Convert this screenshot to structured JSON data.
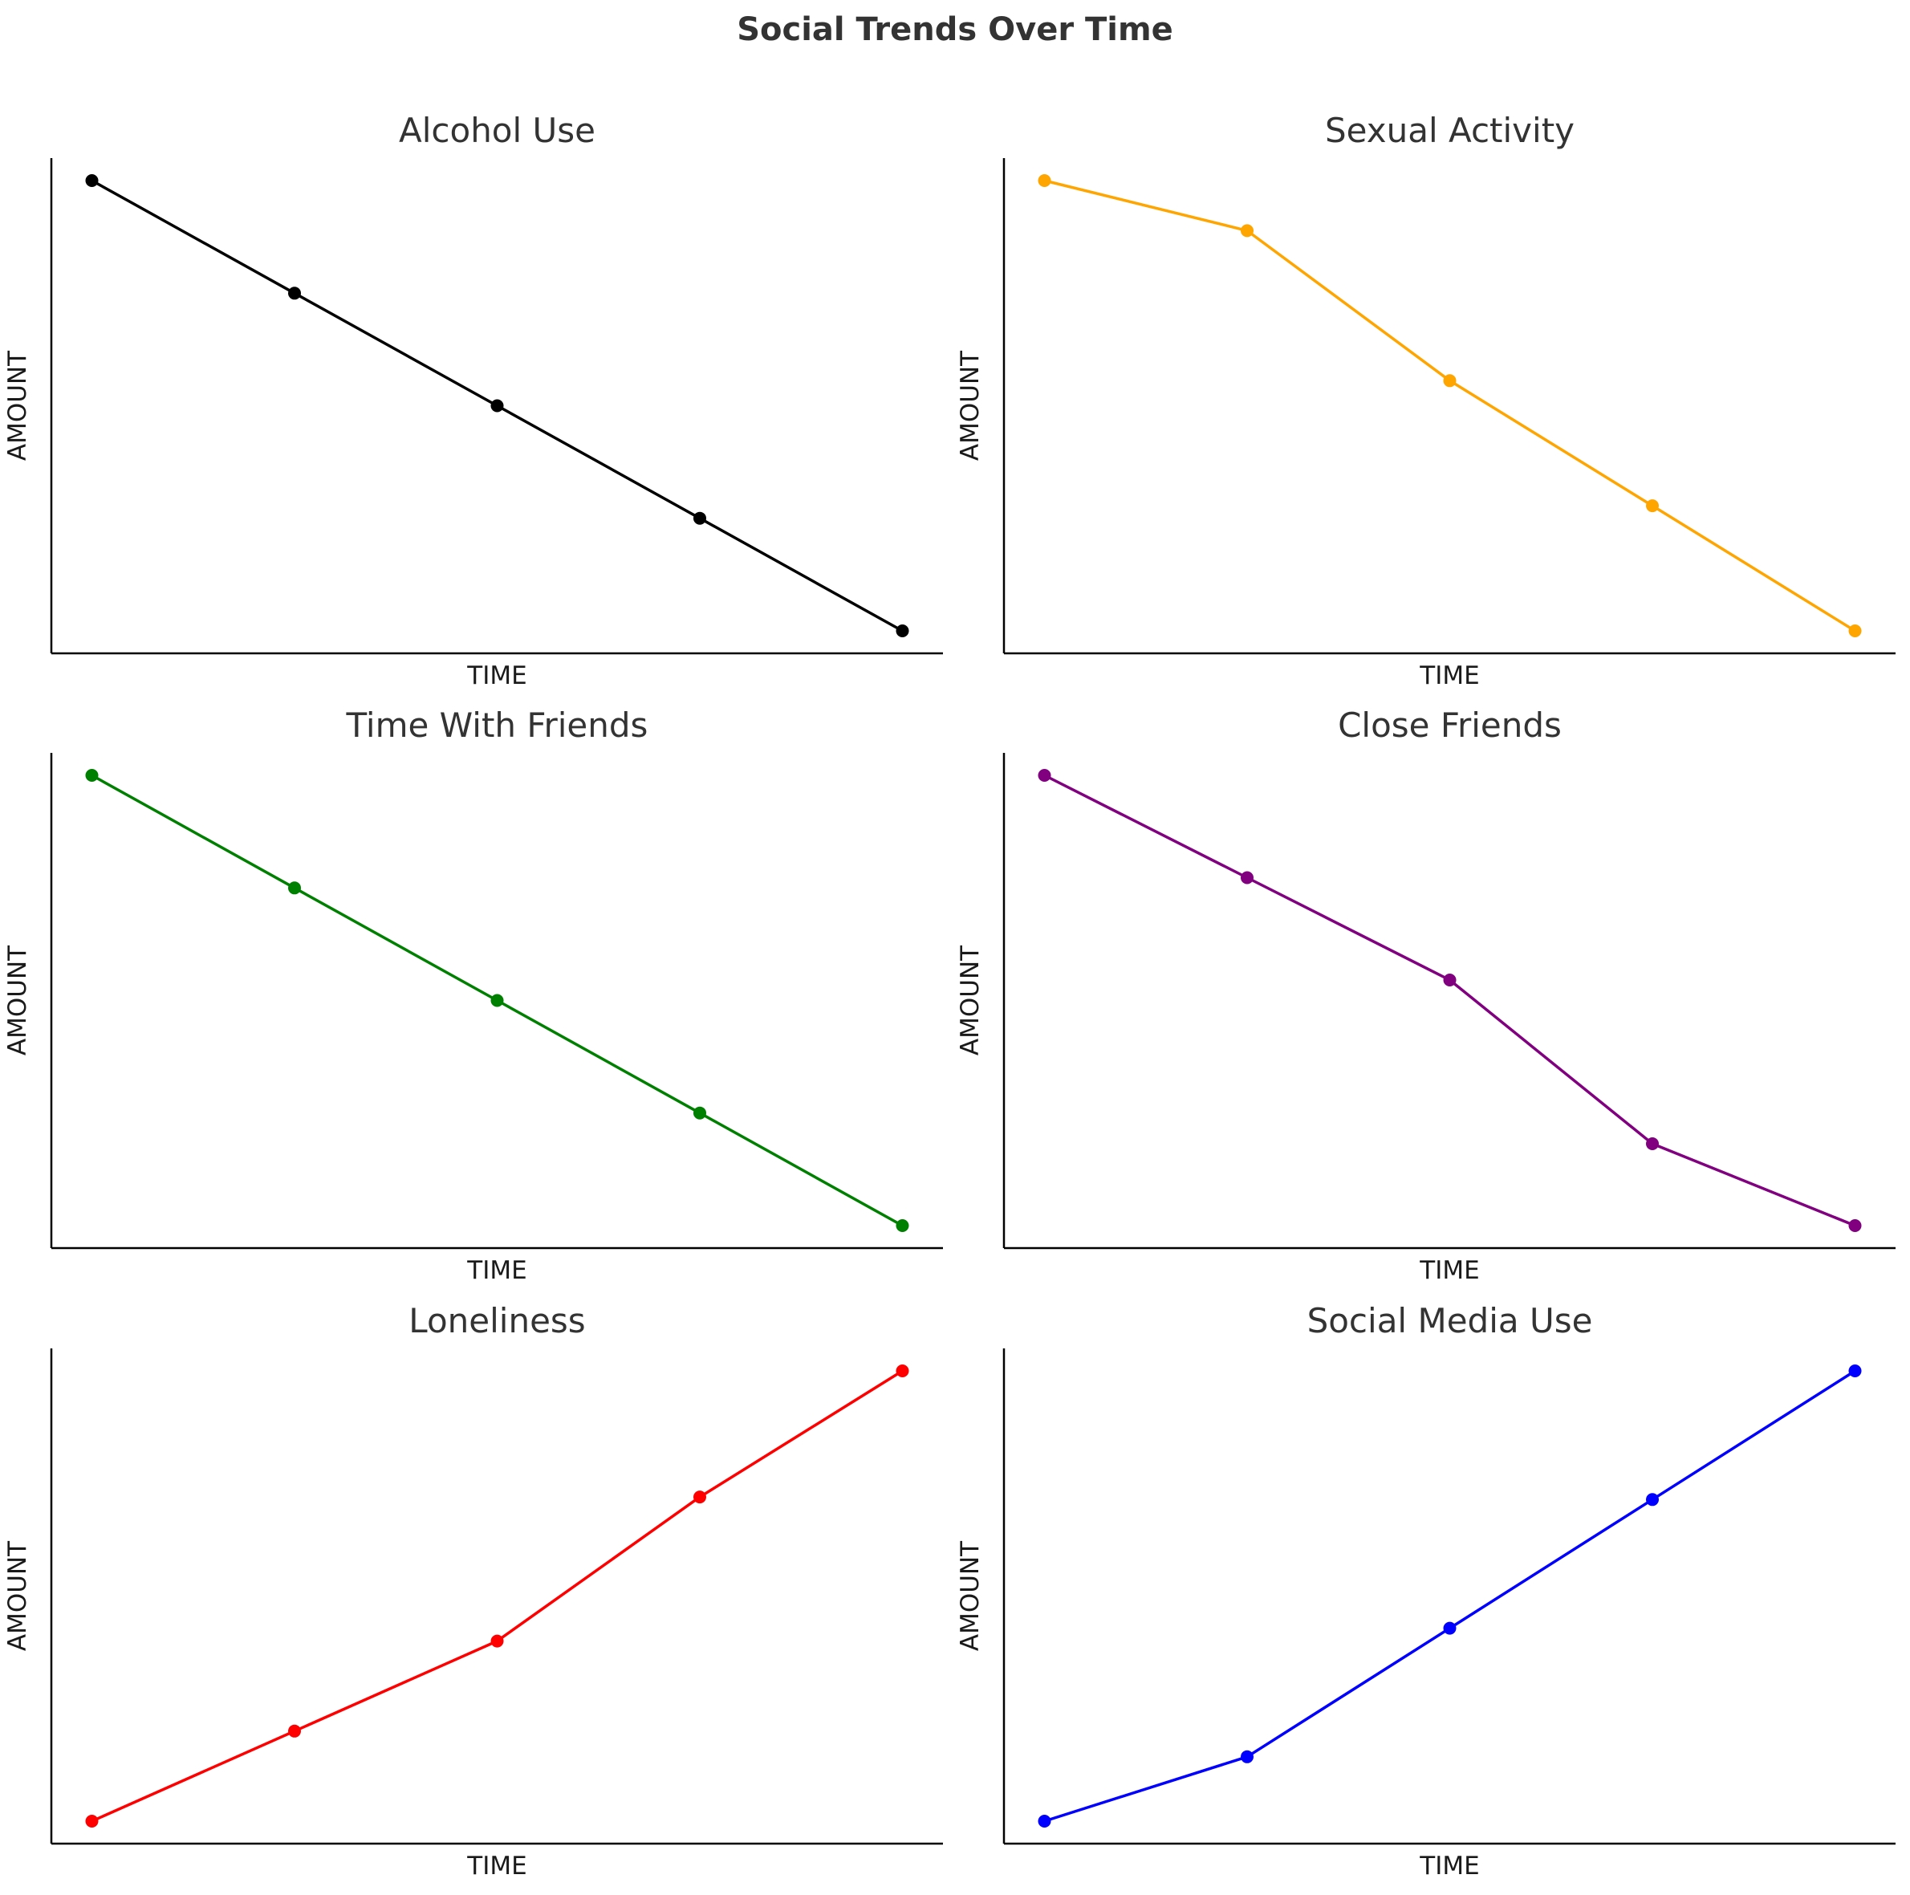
{
  "figure_title": "Social Trends Over Time",
  "chart_data": [
    {
      "type": "line",
      "title": "Alcohol Use",
      "xlabel": "TIME",
      "ylabel": "AMOUNT",
      "x": [
        1,
        2,
        3,
        4,
        5
      ],
      "values": [
        10,
        8,
        6,
        4,
        2
      ],
      "color": "#000000",
      "xlim": [
        0.8,
        5.2
      ],
      "ylim": [
        1.6,
        10.4
      ],
      "grid": false
    },
    {
      "type": "line",
      "title": "Sexual Activity",
      "xlabel": "TIME",
      "ylabel": "AMOUNT",
      "x": [
        1,
        2,
        3,
        4,
        5
      ],
      "values": [
        10,
        9,
        6,
        3.5,
        1
      ],
      "color": "#ffa500",
      "xlim": [
        0.8,
        5.2
      ],
      "ylim": [
        0.55,
        10.45
      ],
      "grid": false
    },
    {
      "type": "line",
      "title": "Time With Friends",
      "xlabel": "TIME",
      "ylabel": "AMOUNT",
      "x": [
        1,
        2,
        3,
        4,
        5
      ],
      "values": [
        10,
        8,
        6,
        4,
        2
      ],
      "color": "#008000",
      "xlim": [
        0.8,
        5.2
      ],
      "ylim": [
        1.6,
        10.4
      ],
      "grid": false
    },
    {
      "type": "line",
      "title": "Close Friends",
      "xlabel": "TIME",
      "ylabel": "AMOUNT",
      "x": [
        1,
        2,
        3,
        4,
        5
      ],
      "values": [
        10,
        8,
        6,
        2.8,
        1.2
      ],
      "color": "#800080",
      "xlim": [
        0.8,
        5.2
      ],
      "ylim": [
        0.76,
        10.44
      ],
      "grid": false
    },
    {
      "type": "line",
      "title": "Loneliness",
      "xlabel": "TIME",
      "ylabel": "AMOUNT",
      "x": [
        1,
        2,
        3,
        4,
        5
      ],
      "values": [
        1,
        3,
        5,
        8.2,
        11
      ],
      "color": "#ff0000",
      "xlim": [
        0.8,
        5.2
      ],
      "ylim": [
        0.5,
        11.5
      ],
      "grid": false
    },
    {
      "type": "line",
      "title": "Social Media Use",
      "xlabel": "TIME",
      "ylabel": "AMOUNT",
      "x": [
        1,
        2,
        3,
        4,
        5
      ],
      "values": [
        1,
        2.5,
        5.5,
        8.5,
        11.5
      ],
      "color": "#0000ff",
      "xlim": [
        0.8,
        5.2
      ],
      "ylim": [
        0.475,
        12.025
      ],
      "grid": false
    }
  ]
}
